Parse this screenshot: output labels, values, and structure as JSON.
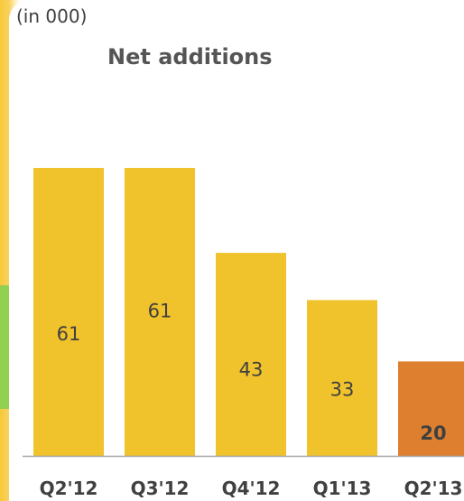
{
  "chart_data": {
    "type": "bar",
    "title": "Net additions",
    "subtitle": "(in 000)",
    "categories": [
      "Q2'12",
      "Q3'12",
      "Q4'12",
      "Q1'13",
      "Q2'13"
    ],
    "values": [
      61,
      61,
      43,
      33,
      20
    ],
    "data_labels": [
      "61",
      "61",
      "43",
      "33",
      "20"
    ],
    "highlight_index": 4,
    "colors": {
      "bar": "#f0c22b",
      "highlight": "#dd7f2e",
      "axis": "#a6a6a6"
    },
    "ylim": [
      0,
      61
    ],
    "grid": false,
    "legend": "none"
  }
}
